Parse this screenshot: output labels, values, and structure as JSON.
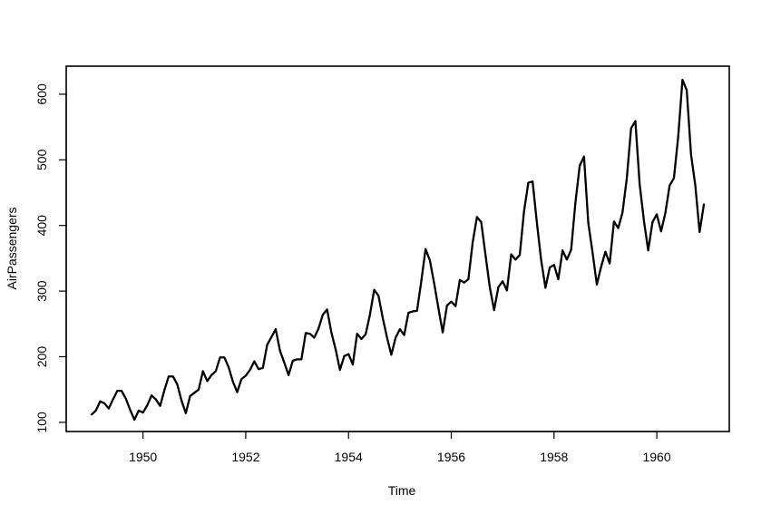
{
  "chart_data": {
    "type": "line",
    "xlabel": "Time",
    "ylabel": "AirPassengers",
    "x_start": 1949,
    "frequency": 12,
    "xlim": [
      1949,
      1960.9167
    ],
    "ylim": [
      104,
      622
    ],
    "x_ticks": [
      1950,
      1952,
      1954,
      1956,
      1958,
      1960
    ],
    "y_ticks": [
      100,
      200,
      300,
      400,
      500,
      600
    ],
    "grid": false,
    "series": [
      {
        "values": [
          112,
          118,
          132,
          129,
          121,
          135,
          148,
          148,
          136,
          119,
          104,
          118,
          115,
          126,
          141,
          135,
          125,
          149,
          170,
          170,
          158,
          133,
          114,
          140,
          145,
          150,
          178,
          163,
          172,
          178,
          199,
          199,
          184,
          162,
          146,
          166,
          171,
          180,
          193,
          181,
          183,
          218,
          230,
          242,
          209,
          191,
          172,
          194,
          196,
          196,
          236,
          235,
          229,
          243,
          264,
          272,
          237,
          211,
          180,
          201,
          204,
          188,
          235,
          227,
          234,
          264,
          302,
          293,
          259,
          229,
          203,
          229,
          242,
          233,
          267,
          269,
          270,
          315,
          364,
          347,
          312,
          274,
          237,
          278,
          284,
          277,
          317,
          313,
          318,
          374,
          413,
          405,
          355,
          306,
          271,
          306,
          315,
          301,
          356,
          348,
          355,
          422,
          465,
          467,
          404,
          347,
          305,
          336,
          340,
          318,
          362,
          348,
          363,
          435,
          491,
          505,
          404,
          359,
          310,
          337,
          360,
          342,
          406,
          396,
          420,
          472,
          548,
          559,
          463,
          407,
          362,
          405,
          417,
          391,
          419,
          461,
          472,
          535,
          622,
          606,
          508,
          461,
          390,
          432
        ]
      }
    ]
  }
}
